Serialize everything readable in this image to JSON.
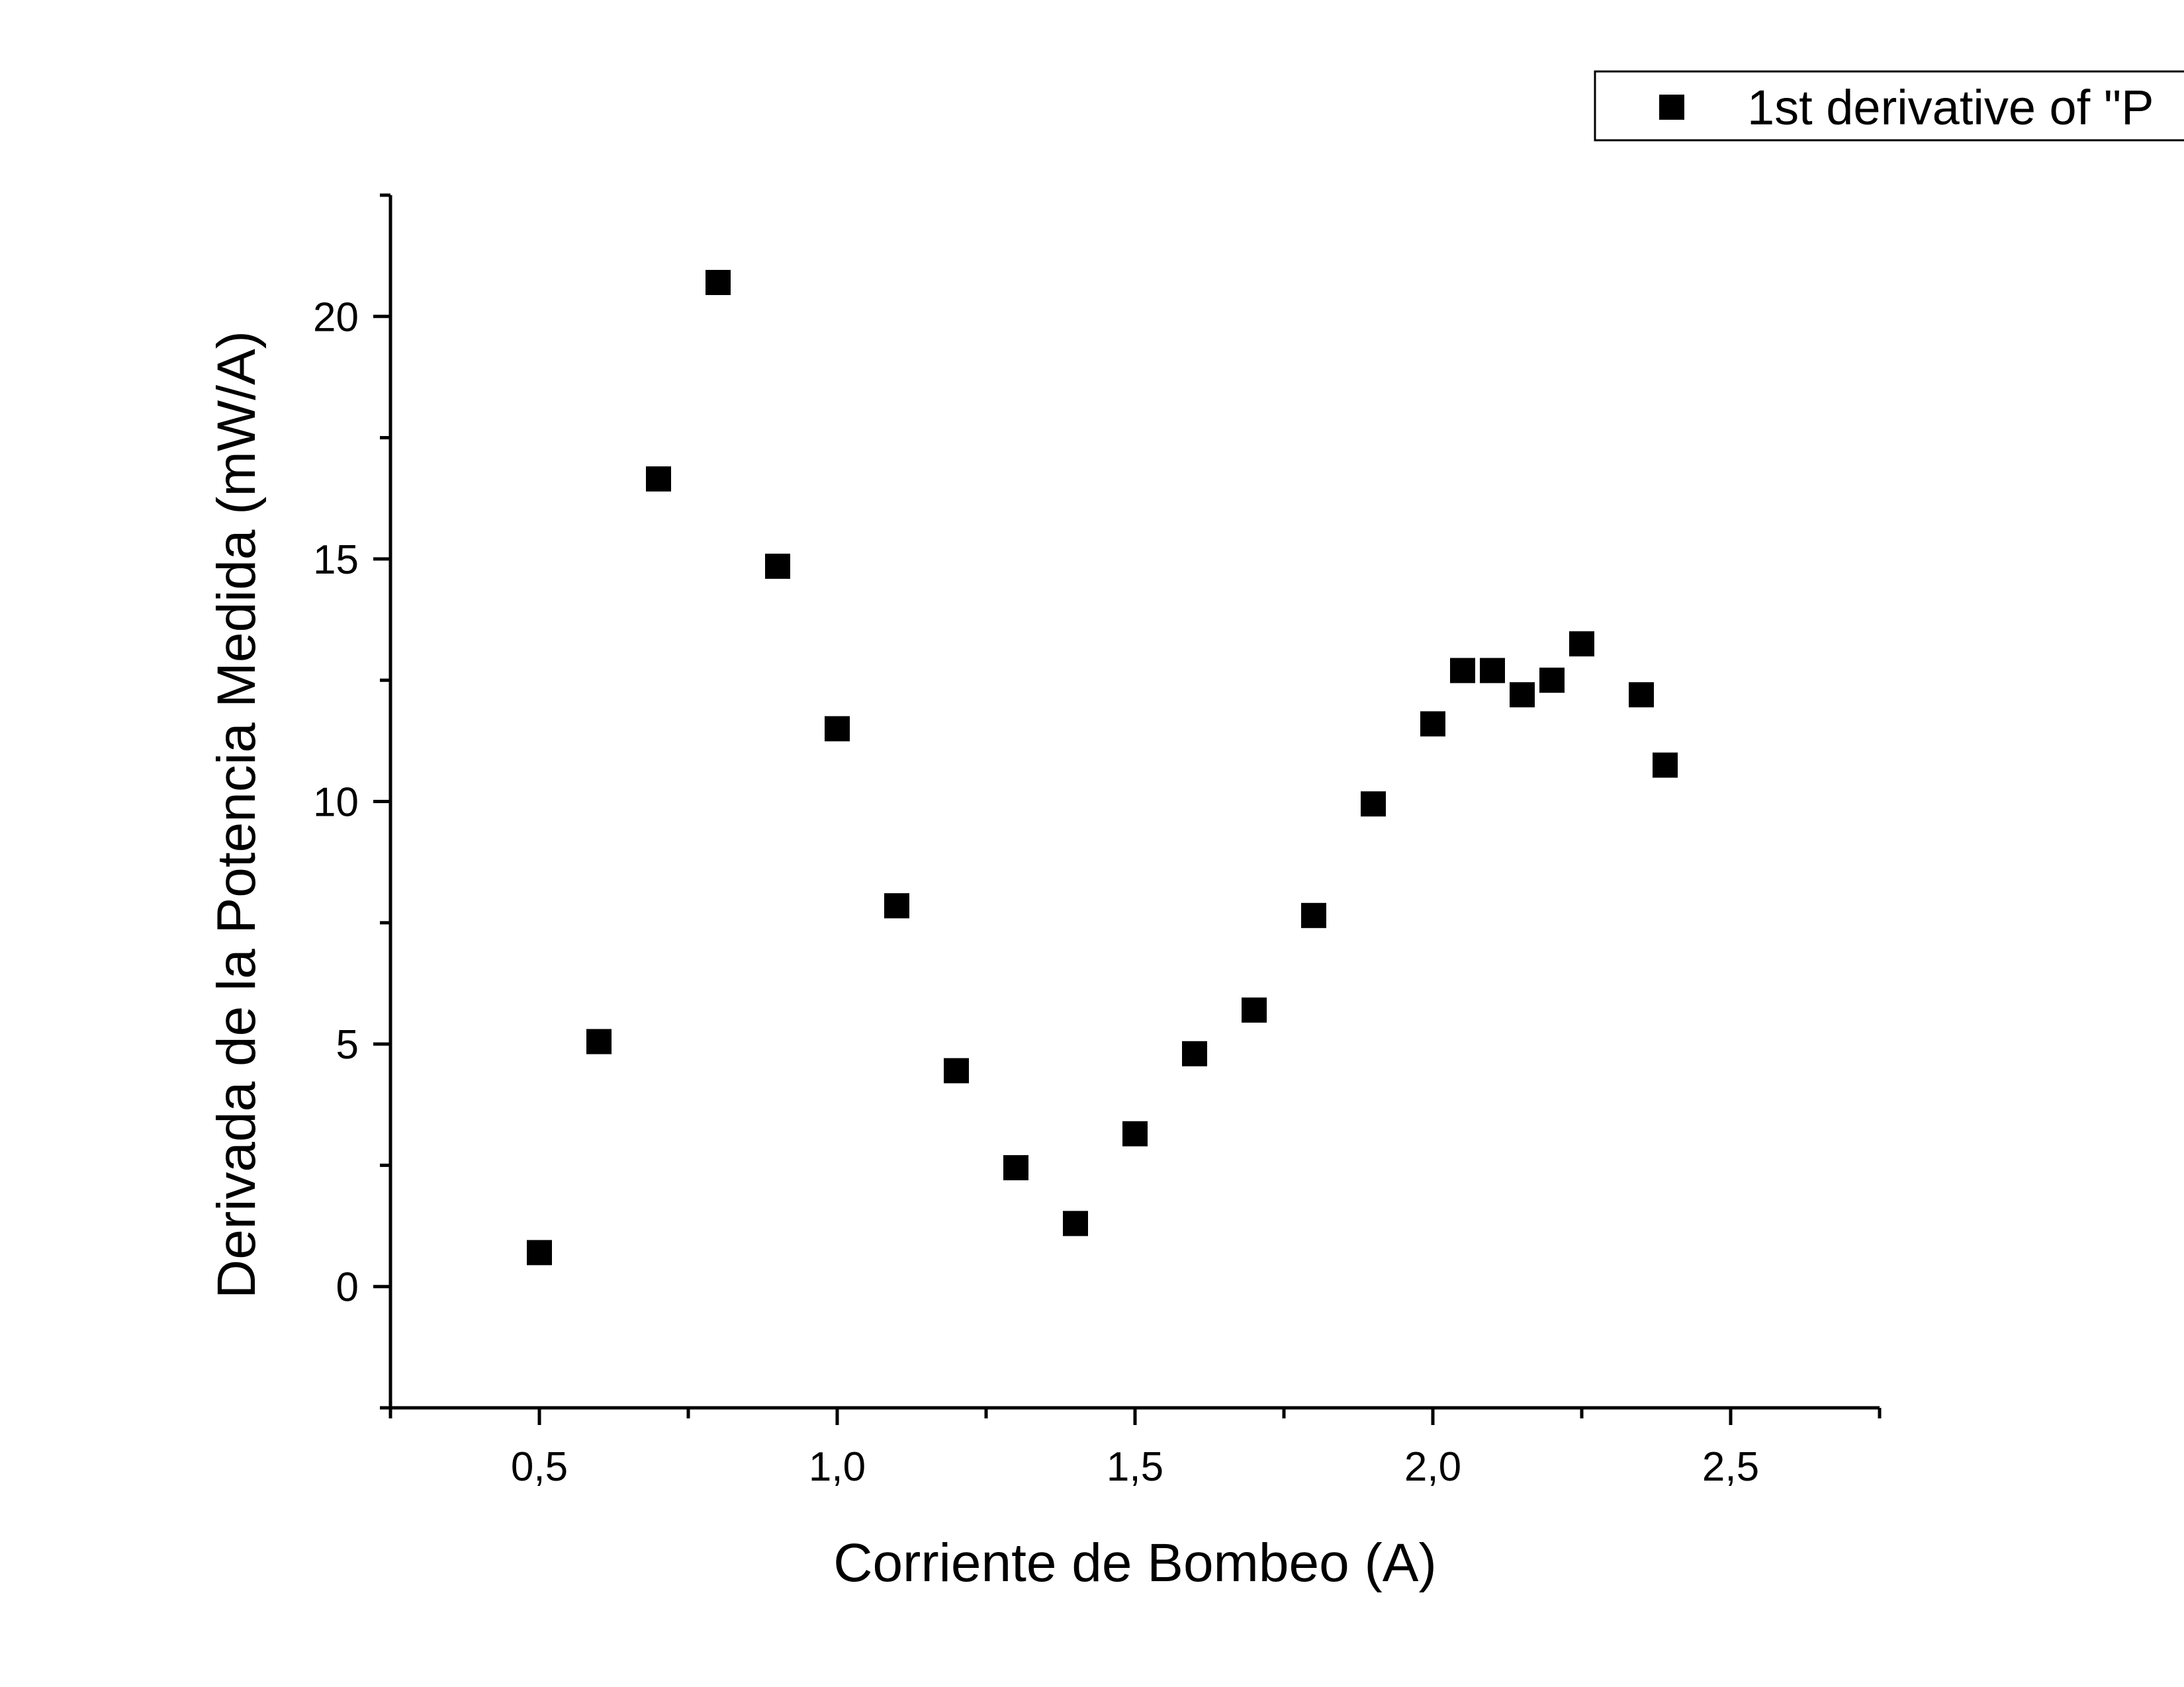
{
  "chart_data": {
    "type": "scatter",
    "xlabel": "Corriente de Bombeo (A)",
    "ylabel": "Derivada de la Potencia Medida (mW/A)",
    "xlim": [
      0.25,
      2.75
    ],
    "ylim": [
      -2.5,
      22.5
    ],
    "x_ticks": [
      0.5,
      1.0,
      1.5,
      2.0,
      2.5
    ],
    "x_tick_labels": [
      "0,5",
      "1,0",
      "1,5",
      "2,0",
      "2,5"
    ],
    "y_ticks": [
      0,
      5,
      10,
      15,
      20
    ],
    "y_tick_labels": [
      "0",
      "5",
      "10",
      "15",
      "20"
    ],
    "grid": false,
    "legend_position": "top-right",
    "marker": "square",
    "series": [
      {
        "name": "1st derivative of \"P",
        "color": "#000000",
        "x": [
          0.5,
          0.6,
          0.7,
          0.8,
          0.9,
          1.0,
          1.1,
          1.2,
          1.3,
          1.4,
          1.5,
          1.6,
          1.7,
          1.8,
          1.9,
          2.0,
          2.05,
          2.1,
          2.15,
          2.2,
          2.25,
          2.35,
          2.39
        ],
        "y": [
          0.7,
          5.05,
          16.65,
          20.7,
          14.85,
          11.5,
          7.85,
          4.45,
          2.45,
          1.3,
          3.15,
          4.8,
          5.7,
          7.65,
          9.95,
          11.6,
          12.7,
          12.7,
          12.2,
          12.5,
          13.25,
          12.2,
          10.75
        ]
      }
    ]
  }
}
